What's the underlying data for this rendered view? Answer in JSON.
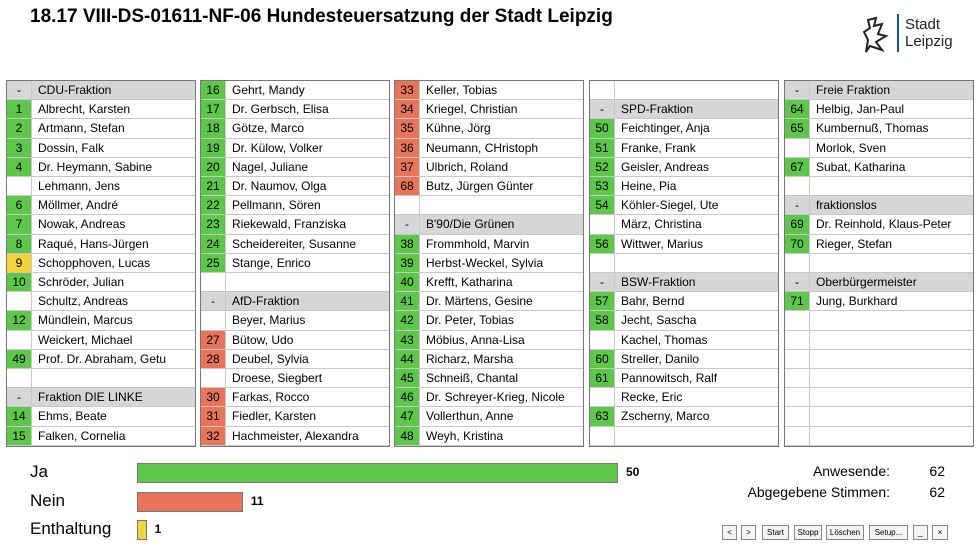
{
  "header": {
    "title": "18.17 VIII-DS-01611-NF-06 Hundesteuersatzung der Stadt Leipzig",
    "logo": [
      "Stadt",
      "Leipzig"
    ]
  },
  "columns": [
    [
      {
        "marker": "-",
        "group": "CDU-Fraktion"
      },
      {
        "no": 1,
        "name": "Albrecht, Karsten",
        "color": "#5ec64a"
      },
      {
        "no": 2,
        "name": "Artmann, Stefan",
        "color": "#5ec64a"
      },
      {
        "no": 3,
        "name": "Dossin, Falk",
        "color": "#5ec64a"
      },
      {
        "no": 4,
        "name": "Dr. Heymann, Sabine",
        "color": "#5ec64a"
      },
      {
        "no": null,
        "name": "Lehmann, Jens",
        "color": null
      },
      {
        "no": 6,
        "name": "Möllmer, André",
        "color": "#5ec64a"
      },
      {
        "no": 7,
        "name": "Nowak, Andreas",
        "color": "#5ec64a"
      },
      {
        "no": 8,
        "name": "Raqué, Hans-Jürgen",
        "color": "#5ec64a"
      },
      {
        "no": 9,
        "name": "Schopphoven, Lucas",
        "color": "#f3d23c"
      },
      {
        "no": 10,
        "name": "Schröder, Julian",
        "color": "#5ec64a"
      },
      {
        "no": null,
        "name": "Schultz, Andreas",
        "color": null
      },
      {
        "no": 12,
        "name": "Mündlein, Marcus",
        "color": "#5ec64a"
      },
      {
        "no": null,
        "name": "Weickert, Michael",
        "color": null
      },
      {
        "no": 49,
        "name": "Prof. Dr. Abraham, Getu",
        "color": "#5ec64a"
      },
      null,
      {
        "marker": "-",
        "group": "Fraktion DIE LINKE"
      },
      {
        "no": 14,
        "name": "Ehms, Beate",
        "color": "#5ec64a"
      },
      {
        "no": 15,
        "name": "Falken, Cornelia",
        "color": "#5ec64a"
      }
    ],
    [
      {
        "no": 16,
        "name": "Gehrt, Mandy",
        "color": "#5ec64a"
      },
      {
        "no": 17,
        "name": "Dr. Gerbsch, Elisa",
        "color": "#5ec64a"
      },
      {
        "no": 18,
        "name": "Götze, Marco",
        "color": "#5ec64a"
      },
      {
        "no": 19,
        "name": "Dr. Külow, Volker",
        "color": "#5ec64a"
      },
      {
        "no": 20,
        "name": "Nagel, Juliane",
        "color": "#5ec64a"
      },
      {
        "no": 21,
        "name": "Dr. Naumov, Olga",
        "color": "#5ec64a"
      },
      {
        "no": 22,
        "name": "Pellmann, Sören",
        "color": "#5ec64a"
      },
      {
        "no": 23,
        "name": "Riekewald, Franziska",
        "color": "#5ec64a"
      },
      {
        "no": 24,
        "name": "Scheidereiter, Susanne",
        "color": "#5ec64a"
      },
      {
        "no": 25,
        "name": "Stange, Enrico",
        "color": "#5ec64a"
      },
      null,
      {
        "marker": "-",
        "group": "AfD-Fraktion"
      },
      {
        "no": null,
        "name": "Beyer, Marius",
        "color": null
      },
      {
        "no": 27,
        "name": "Bütow, Udo",
        "color": "#e8745a"
      },
      {
        "no": 28,
        "name": "Deubel, Sylvia",
        "color": "#e8745a"
      },
      {
        "no": null,
        "name": "Droese, Siegbert",
        "color": null
      },
      {
        "no": 30,
        "name": "Farkas, Rocco",
        "color": "#e8745a"
      },
      {
        "no": 31,
        "name": "Fiedler, Karsten",
        "color": "#e8745a"
      },
      {
        "no": 32,
        "name": "Hachmeister, Alexandra",
        "color": "#e8745a"
      }
    ],
    [
      {
        "no": 33,
        "name": "Keller, Tobias",
        "color": "#e8745a"
      },
      {
        "no": 34,
        "name": "Kriegel, Christian",
        "color": "#e8745a"
      },
      {
        "no": 35,
        "name": "Kühne, Jörg",
        "color": "#e8745a"
      },
      {
        "no": 36,
        "name": "Neumann, CHristoph",
        "color": "#e8745a"
      },
      {
        "no": 37,
        "name": "Ulbrich, Roland",
        "color": "#e8745a"
      },
      {
        "no": 68,
        "name": "Butz, Jürgen Günter",
        "color": "#e8745a"
      },
      null,
      {
        "marker": "-",
        "group": "B'90/Die Grünen"
      },
      {
        "no": 38,
        "name": "Frommhold, Marvin",
        "color": "#5ec64a"
      },
      {
        "no": 39,
        "name": "Herbst-Weckel, Sylvia",
        "color": "#5ec64a"
      },
      {
        "no": 40,
        "name": "Krefft, Katharina",
        "color": "#5ec64a"
      },
      {
        "no": 41,
        "name": "Dr. Märtens, Gesine",
        "color": "#5ec64a"
      },
      {
        "no": 42,
        "name": "Dr. Peter, Tobias",
        "color": "#5ec64a"
      },
      {
        "no": 43,
        "name": "Möbius, Anna-Lisa",
        "color": "#5ec64a"
      },
      {
        "no": 44,
        "name": "Richarz, Marsha",
        "color": "#5ec64a"
      },
      {
        "no": 45,
        "name": "Schneiß, Chantal",
        "color": "#5ec64a"
      },
      {
        "no": 46,
        "name": "Dr. Schreyer-Krieg, Nicole",
        "color": "#5ec64a"
      },
      {
        "no": 47,
        "name": "Vollerthun, Anne",
        "color": "#5ec64a"
      },
      {
        "no": 48,
        "name": "Weyh, Kristina",
        "color": "#5ec64a"
      }
    ],
    [
      null,
      {
        "marker": "-",
        "group": "SPD-Fraktion"
      },
      {
        "no": 50,
        "name": "Feichtinger, Anja",
        "color": "#5ec64a"
      },
      {
        "no": 51,
        "name": "Franke, Frank",
        "color": "#5ec64a"
      },
      {
        "no": 52,
        "name": "Geisler, Andreas",
        "color": "#5ec64a"
      },
      {
        "no": 53,
        "name": "Heine, Pia",
        "color": "#5ec64a"
      },
      {
        "no": 54,
        "name": "Köhler-Siegel, Ute",
        "color": "#5ec64a"
      },
      {
        "no": null,
        "name": "März, Christina",
        "color": null
      },
      {
        "no": 56,
        "name": "Wittwer, Marius",
        "color": "#5ec64a"
      },
      null,
      {
        "marker": "-",
        "group": "BSW-Fraktion"
      },
      {
        "no": 57,
        "name": "Bahr, Bernd",
        "color": "#5ec64a"
      },
      {
        "no": 58,
        "name": "Jecht, Sascha",
        "color": "#5ec64a"
      },
      {
        "no": null,
        "name": "Kachel, Thomas",
        "color": null
      },
      {
        "no": 60,
        "name": "Streller, Danilo",
        "color": "#5ec64a"
      },
      {
        "no": 61,
        "name": "Pannowitsch, Ralf",
        "color": "#5ec64a"
      },
      {
        "no": null,
        "name": "Recke, Eric",
        "color": null
      },
      {
        "no": 63,
        "name": "Zscherny, Marco",
        "color": "#5ec64a"
      },
      null
    ],
    [
      {
        "marker": "-",
        "group": "Freie Fraktion"
      },
      {
        "no": 64,
        "name": "Helbig, Jan-Paul",
        "color": "#5ec64a"
      },
      {
        "no": 65,
        "name": "Kumbernuß, Thomas",
        "color": "#5ec64a"
      },
      {
        "no": null,
        "name": "Morlok, Sven",
        "color": null
      },
      {
        "no": 67,
        "name": "Subat, Katharina",
        "color": "#5ec64a"
      },
      null,
      {
        "marker": "-",
        "group": "fraktionslos"
      },
      {
        "no": 69,
        "name": "Dr. Reinhold, Klaus-Peter",
        "color": "#5ec64a"
      },
      {
        "no": 70,
        "name": "Rieger, Stefan",
        "color": "#5ec64a"
      },
      null,
      {
        "marker": "-",
        "group": "Oberbürgermeister"
      },
      {
        "no": 71,
        "name": "Jung, Burkhard",
        "color": "#5ec64a"
      },
      null,
      null,
      null,
      null,
      null,
      null,
      null
    ]
  ],
  "chart_data": {
    "type": "bar",
    "categories": [
      "Ja",
      "Nein",
      "Enthaltung"
    ],
    "values": [
      50,
      11,
      1
    ],
    "colors": [
      "#5ec64a",
      "#e8745a",
      "#f3d23c"
    ]
  },
  "stats": [
    {
      "label": "Anwesende:",
      "value": 62
    },
    {
      "label": "Abgegebene Stimmen:",
      "value": 62
    }
  ],
  "buttons": [
    "<",
    ">",
    "Start",
    "Stopp",
    "Löschen",
    "Setup...",
    "_",
    "×"
  ]
}
